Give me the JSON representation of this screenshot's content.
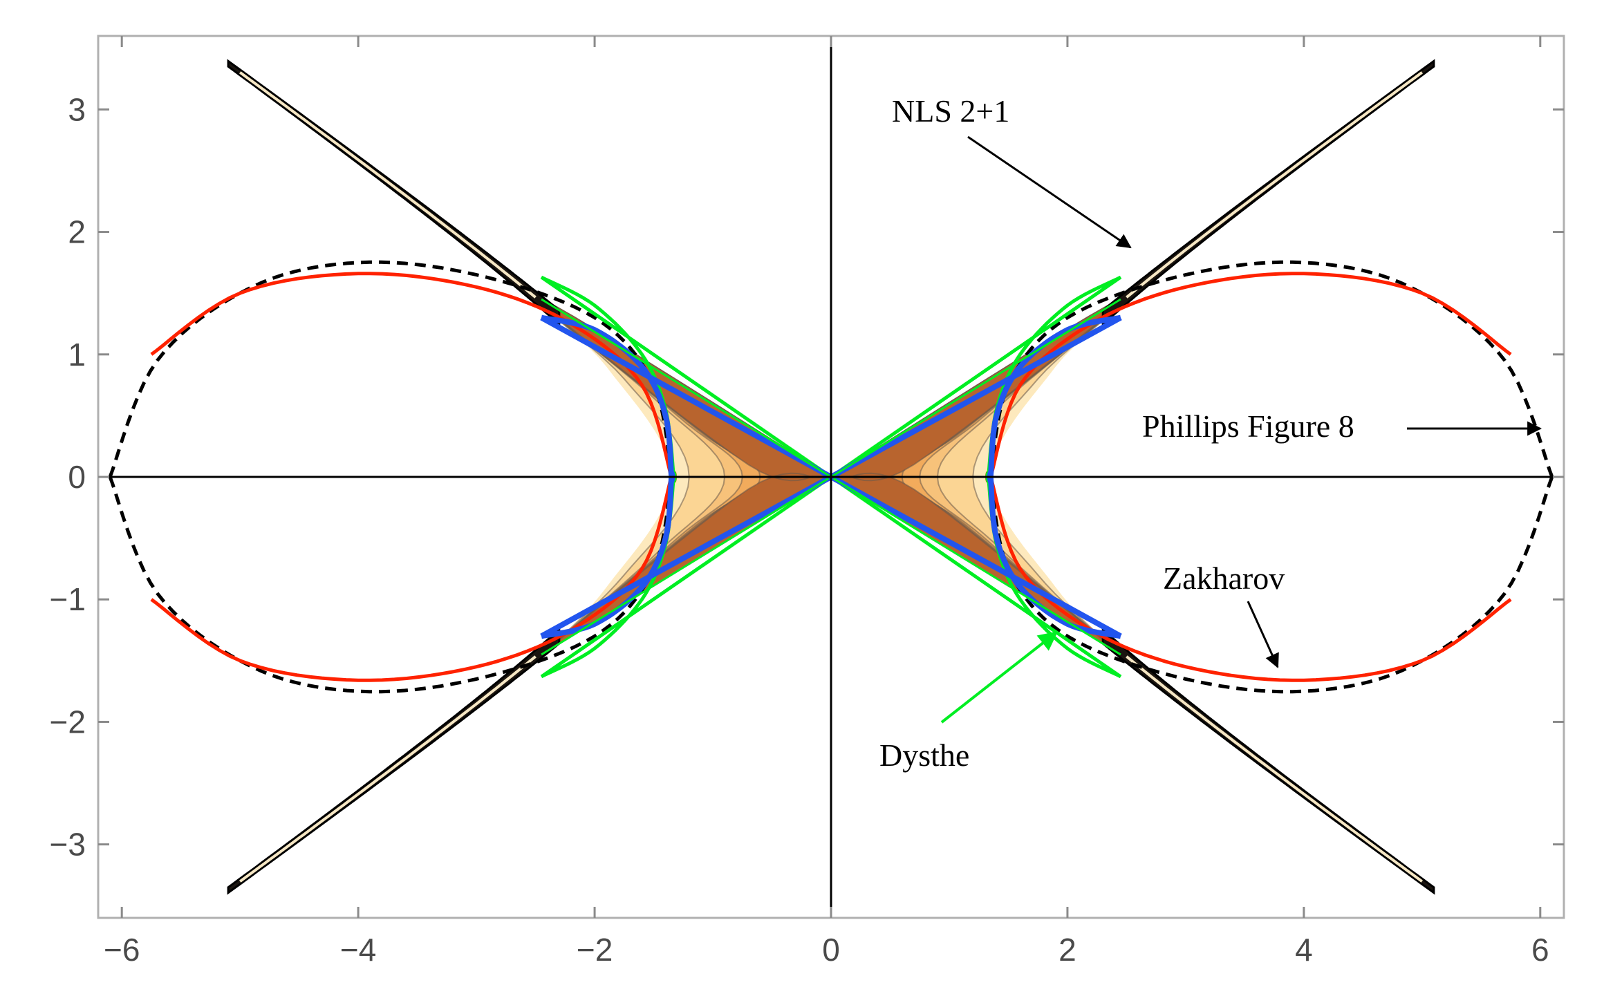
{
  "chart_data": {
    "type": "line",
    "title": "",
    "xlabel": "",
    "ylabel": "",
    "xlim": [
      -6.2,
      6.2
    ],
    "ylim": [
      -3.6,
      3.6
    ],
    "x_ticks": [
      -6,
      -4,
      -2,
      0,
      2,
      4,
      6
    ],
    "y_ticks": [
      -3,
      -2,
      -1,
      0,
      1,
      2,
      3
    ],
    "x_tick_labels": [
      "−6",
      "−4",
      "−2",
      "0",
      "2",
      "4",
      "6"
    ],
    "y_tick_labels": [
      "−3",
      "−2",
      "−1",
      "0",
      "1",
      "2",
      "3"
    ],
    "grid": false,
    "annotations": [
      {
        "text": "NLS 2+1",
        "series": "NLS 2+1"
      },
      {
        "text": "Phillips Figure 8",
        "series": "Phillips Figure 8"
      },
      {
        "text": "Zakharov",
        "series": "Zakharov"
      },
      {
        "text": "Dysthe",
        "series": "Dysthe"
      }
    ],
    "series": [
      {
        "name": "NLS 2+1",
        "description": "hyperbola band y^2 = 0.467 x^2 - 0.87, |x| from 1.35 to 5.1",
        "color": "#000000",
        "a2": 0.87,
        "slope2": 0.467,
        "x_max": 5.1
      },
      {
        "name": "Phillips Figure 8",
        "description": "dashed closed loops",
        "color": "#000000",
        "points": [
          [
            6.1,
            0
          ],
          [
            5.7,
            0.95
          ],
          [
            4.9,
            1.55
          ],
          [
            4.0,
            1.75
          ],
          [
            3.0,
            1.65
          ],
          [
            2.0,
            1.3
          ],
          [
            1.5,
            0.75
          ],
          [
            1.35,
            0
          ]
        ]
      },
      {
        "name": "Zakharov",
        "color": "#ff2200",
        "points": [
          [
            5.75,
            1.0
          ],
          [
            5.0,
            1.5
          ],
          [
            4.0,
            1.66
          ],
          [
            3.0,
            1.55
          ],
          [
            2.2,
            1.25
          ],
          [
            1.6,
            0.75
          ],
          [
            1.35,
            0
          ]
        ]
      },
      {
        "name": "Dysthe",
        "color": "#00ee22",
        "points": [
          [
            2.45,
            1.63
          ],
          [
            2.0,
            1.4
          ],
          [
            1.6,
            1.0
          ],
          [
            1.4,
            0.55
          ],
          [
            1.33,
            0
          ]
        ]
      },
      {
        "name": "Blue curve",
        "color": "#2255ee",
        "points": [
          [
            2.45,
            1.3
          ],
          [
            2.0,
            1.2
          ],
          [
            1.6,
            0.9
          ],
          [
            1.4,
            0.5
          ],
          [
            1.35,
            0
          ]
        ]
      },
      {
        "name": "Contour bands",
        "color": "#f7a15a",
        "levels": [
          1.35,
          1.2,
          0.9,
          0.75,
          0.6,
          0.45,
          0.3,
          0.15
        ]
      }
    ],
    "colors": {
      "axis": "#000000",
      "frame": "#b0b0b0",
      "tick_text": "#4a4a4a",
      "zakharov": "#ff2200",
      "dysthe": "#00ee22",
      "blue": "#2255ee",
      "fill_light": "#fde9bd",
      "fill_mid": "#f7c27a",
      "fill_dark": "#e98a3c"
    }
  }
}
